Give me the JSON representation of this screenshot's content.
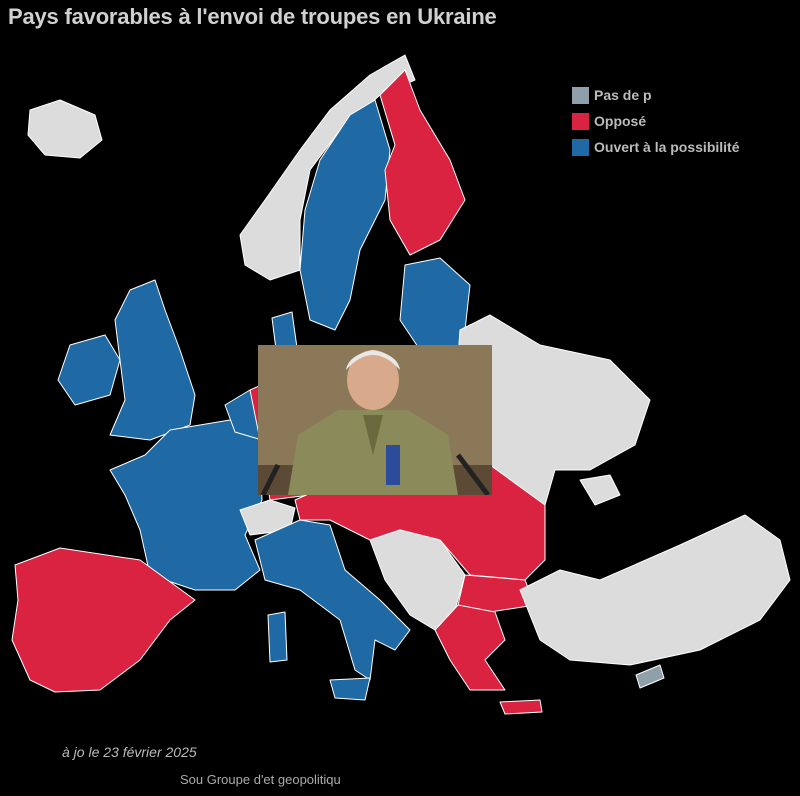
{
  "title": "Pays favorables à l'envoi de troupes en Ukraine",
  "legend": [
    {
      "label": "Pas de p",
      "color": "#8fa0ab"
    },
    {
      "label": "Opposé",
      "color": "#d92341"
    },
    {
      "label": "Ouvert à la possibilité",
      "color": "#1f6aa5"
    }
  ],
  "colors": {
    "no_position": "#dcdcdc",
    "opposed": "#d92341",
    "open": "#1f6aa5",
    "background": "#000000"
  },
  "footer": {
    "updated": "à jo  le 23 février 2025",
    "source": "Sou   Groupe d'et    geopolitiqu"
  }
}
